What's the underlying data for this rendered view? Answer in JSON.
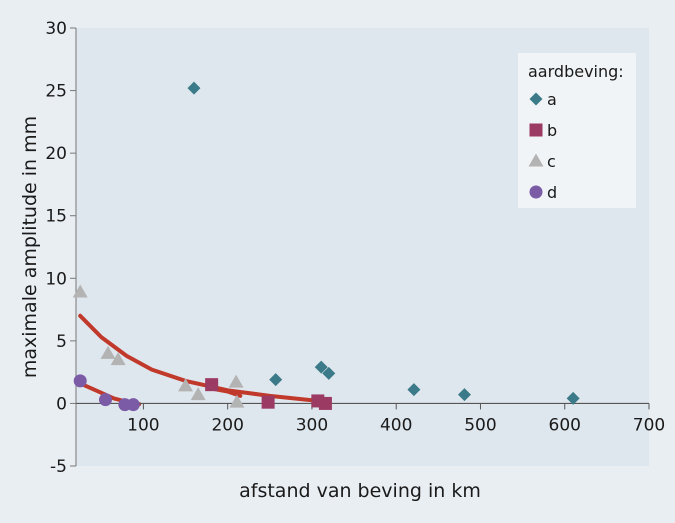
{
  "chart_data": {
    "type": "scatter",
    "xlabel": "afstand van beving in km",
    "ylabel": "maximale amplitude in mm",
    "xlim": [
      20,
      700
    ],
    "ylim": [
      -5,
      30
    ],
    "x_ticks": [
      100,
      200,
      300,
      400,
      500,
      600,
      700
    ],
    "y_ticks": [
      -5,
      0,
      5,
      10,
      15,
      20,
      25,
      30
    ],
    "grid": false,
    "legend": {
      "title": "aardbeving:",
      "placement": "top-right"
    },
    "series": [
      {
        "name": "a",
        "marker": "diamond",
        "color": "#3b7a88",
        "points": [
          [
            160,
            25.2
          ],
          [
            257,
            1.9
          ],
          [
            311,
            2.9
          ],
          [
            320,
            2.4
          ],
          [
            421,
            1.1
          ],
          [
            481,
            0.7
          ],
          [
            610,
            0.4
          ]
        ]
      },
      {
        "name": "b",
        "marker": "square",
        "color": "#9b3a62",
        "points": [
          [
            181,
            1.5
          ],
          [
            248,
            0.1
          ],
          [
            307,
            0.2
          ],
          [
            316,
            0.0
          ]
        ]
      },
      {
        "name": "c",
        "marker": "triangle",
        "color": "#b3b3b3",
        "points": [
          [
            25,
            8.9
          ],
          [
            58,
            4.0
          ],
          [
            70,
            3.5
          ],
          [
            150,
            1.4
          ],
          [
            165,
            0.7
          ],
          [
            210,
            1.7
          ],
          [
            211,
            0.1
          ]
        ]
      },
      {
        "name": "d",
        "marker": "circle",
        "color": "#7b5aa6",
        "points": [
          [
            25,
            1.8
          ],
          [
            55,
            0.3
          ],
          [
            78,
            -0.1
          ],
          [
            88,
            -0.1
          ]
        ]
      }
    ],
    "trendlines": [
      {
        "color": "#c0392b",
        "points": [
          [
            25,
            7.0
          ],
          [
            50,
            5.3
          ],
          [
            80,
            3.8
          ],
          [
            110,
            2.7
          ],
          [
            150,
            1.8
          ],
          [
            200,
            1.05
          ],
          [
            250,
            0.6
          ],
          [
            300,
            0.25
          ],
          [
            320,
            0.15
          ]
        ]
      },
      {
        "color": "#c0392b",
        "points": [
          [
            25,
            1.6
          ],
          [
            45,
            1.0
          ],
          [
            65,
            0.4
          ],
          [
            85,
            0.05
          ],
          [
            95,
            -0.05
          ]
        ]
      },
      {
        "color": "#c0392b",
        "points": [
          [
            180,
            1.2
          ],
          [
            200,
            0.95
          ],
          [
            215,
            0.6
          ]
        ]
      }
    ]
  }
}
